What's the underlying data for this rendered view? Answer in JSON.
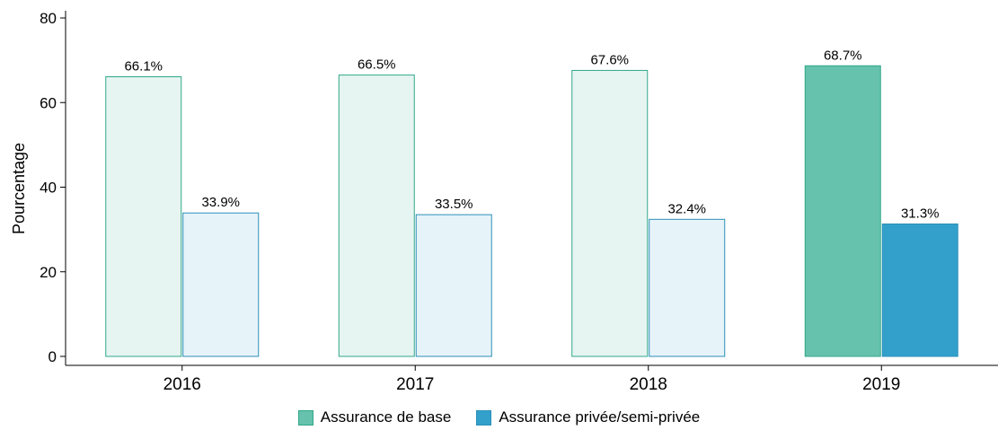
{
  "chart_data": {
    "type": "bar",
    "categories": [
      "2016",
      "2017",
      "2018",
      "2019"
    ],
    "series": [
      {
        "name": "Assurance de base",
        "values": [
          66.1,
          66.5,
          67.6,
          68.7
        ],
        "labels": [
          "66.1%",
          "66.5%",
          "67.6%",
          "68.7%"
        ],
        "color": "#66c2ad",
        "faded_fill": "#e6f5f1",
        "stroke": "#30a78a"
      },
      {
        "name": "Assurance privée/semi-privée",
        "values": [
          33.9,
          33.5,
          32.4,
          31.3
        ],
        "labels": [
          "33.9%",
          "33.5%",
          "32.4%",
          "31.3%"
        ],
        "color": "#32a0cb",
        "faded_fill": "#e6f3f9",
        "stroke": "#2b8fb8"
      }
    ],
    "highlighted_category": "2019",
    "ylabel": "Pourcentage",
    "ylim": [
      0,
      80
    ],
    "yticks": [
      "0",
      "20",
      "40",
      "60",
      "80"
    ],
    "legend_position": "bottom",
    "grid": false
  }
}
